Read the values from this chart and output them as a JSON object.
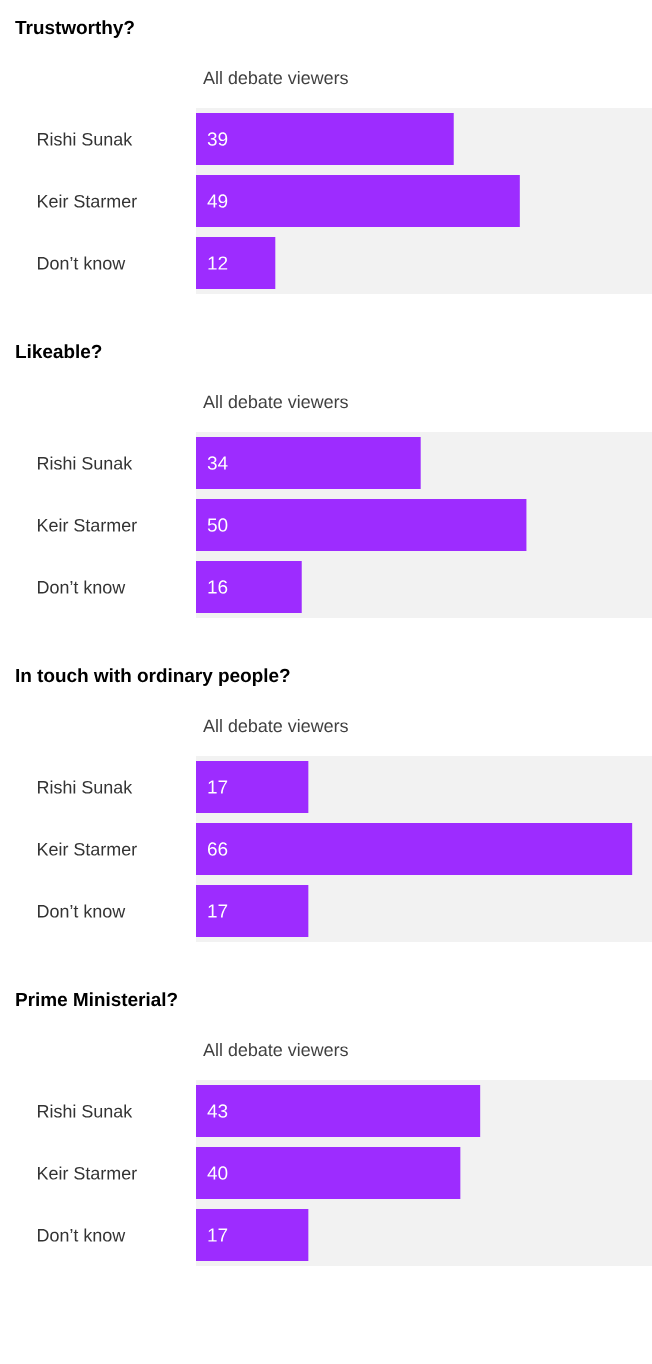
{
  "chart_data": [
    {
      "type": "bar",
      "orientation": "horizontal",
      "title": "Trustworthy?",
      "subtitle": "All debate viewers",
      "categories": [
        "Rishi Sunak",
        "Keir Starmer",
        "Don’t know"
      ],
      "values": [
        39,
        49,
        12
      ],
      "color": "#9d2cff",
      "xlim": [
        0,
        69
      ],
      "data_labels": true,
      "tick_labels": "y"
    },
    {
      "type": "bar",
      "orientation": "horizontal",
      "title": "Likeable?",
      "subtitle": "All debate viewers",
      "categories": [
        "Rishi Sunak",
        "Keir Starmer",
        "Don’t know"
      ],
      "values": [
        34,
        50,
        16
      ],
      "color": "#9d2cff",
      "xlim": [
        0,
        69
      ],
      "data_labels": true,
      "tick_labels": "y"
    },
    {
      "type": "bar",
      "orientation": "horizontal",
      "title": "In touch with ordinary people?",
      "subtitle": "All debate viewers",
      "categories": [
        "Rishi Sunak",
        "Keir Starmer",
        "Don’t know"
      ],
      "values": [
        17,
        66,
        17
      ],
      "color": "#9d2cff",
      "xlim": [
        0,
        69
      ],
      "data_labels": true,
      "tick_labels": "y"
    },
    {
      "type": "bar",
      "orientation": "horizontal",
      "title": "Prime Ministerial?",
      "subtitle": "All debate viewers",
      "categories": [
        "Rishi Sunak",
        "Keir Starmer",
        "Don’t know"
      ],
      "values": [
        43,
        40,
        17
      ],
      "color": "#9d2cff",
      "xlim": [
        0,
        69
      ],
      "data_labels": true,
      "tick_labels": "y"
    }
  ]
}
